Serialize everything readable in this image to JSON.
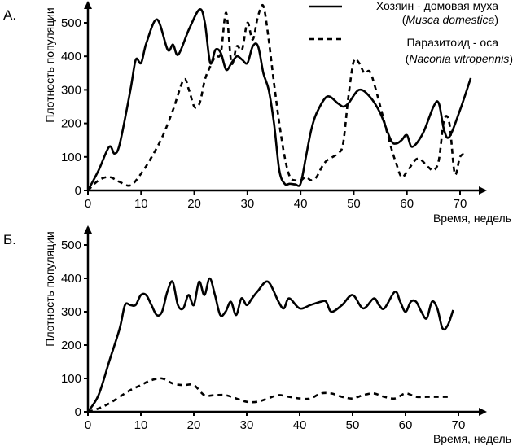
{
  "chart_data": [
    {
      "panel": "А.",
      "type": "line",
      "xlabel": "Время, недель",
      "ylabel": "Плотность популяции",
      "xlim": [
        0,
        75
      ],
      "ylim": [
        0,
        550
      ],
      "xticks": [
        0,
        10,
        20,
        30,
        40,
        50,
        60,
        70
      ],
      "yticks": [
        0,
        100,
        200,
        300,
        400,
        500
      ],
      "grid": false,
      "legend_position": "top-right",
      "series": [
        {
          "name": "host",
          "legend_line1": "Хозяин - домовая муха",
          "legend_paren_open": "(",
          "legend_latin": "Musca domestica",
          "legend_paren_close": ")",
          "style": "solid",
          "x": [
            0,
            2,
            4,
            5,
            6,
            8,
            9,
            10,
            11,
            13,
            15,
            16,
            17,
            19,
            21,
            22,
            23,
            24,
            25,
            26,
            27,
            28,
            29,
            30,
            31,
            32,
            33,
            34,
            35,
            36,
            37,
            38,
            39,
            40,
            41,
            42,
            43,
            45,
            47,
            48,
            49,
            51,
            53,
            55,
            57,
            58,
            59,
            60,
            61,
            63,
            65,
            66,
            67,
            68,
            70,
            72
          ],
          "y": [
            0,
            60,
            130,
            110,
            140,
            300,
            390,
            380,
            440,
            510,
            420,
            435,
            405,
            480,
            540,
            500,
            380,
            420,
            410,
            360,
            380,
            400,
            390,
            380,
            430,
            430,
            350,
            300,
            200,
            60,
            20,
            20,
            18,
            20,
            100,
            180,
            230,
            280,
            260,
            250,
            260,
            300,
            280,
            230,
            150,
            140,
            150,
            165,
            130,
            170,
            250,
            260,
            180,
            160,
            240,
            335
          ]
        },
        {
          "name": "parasitoid",
          "legend_line1": "Паразитоид - оса",
          "legend_paren_open": "(",
          "legend_latin": "Naconia vitropennis",
          "legend_paren_close": ")",
          "style": "dashed",
          "x": [
            0,
            2,
            4,
            6,
            8,
            10,
            12,
            14,
            16,
            18,
            19,
            20,
            21,
            22,
            23,
            24,
            25,
            26,
            27,
            28,
            29,
            30,
            31,
            32,
            33,
            34,
            35,
            36,
            37,
            38,
            39,
            40,
            41,
            42,
            43,
            44,
            45,
            47,
            48,
            49,
            50,
            51,
            52,
            53,
            54,
            55,
            57,
            58,
            59,
            60,
            62,
            64,
            65,
            66,
            67,
            68,
            69,
            70,
            71
          ],
          "y": [
            0,
            30,
            40,
            25,
            15,
            50,
            100,
            160,
            240,
            330,
            300,
            250,
            260,
            330,
            370,
            400,
            410,
            530,
            380,
            430,
            420,
            500,
            450,
            520,
            550,
            450,
            320,
            200,
            100,
            40,
            30,
            30,
            40,
            30,
            40,
            70,
            90,
            110,
            140,
            280,
            385,
            380,
            350,
            355,
            310,
            250,
            130,
            80,
            40,
            55,
            95,
            70,
            60,
            90,
            210,
            200,
            50,
            100,
            110
          ]
        }
      ]
    },
    {
      "panel": "Б.",
      "type": "line",
      "xlabel": "Время, недель",
      "ylabel": "Плотность популяции",
      "xlim": [
        0,
        75
      ],
      "ylim": [
        0,
        550
      ],
      "xticks": [
        0,
        10,
        20,
        30,
        40,
        50,
        60,
        70
      ],
      "yticks": [
        0,
        100,
        200,
        300,
        400,
        500
      ],
      "grid": false,
      "series": [
        {
          "name": "host",
          "style": "solid",
          "x": [
            0,
            2,
            4,
            6,
            7,
            8,
            9,
            10,
            11,
            12,
            13,
            14,
            15,
            16,
            17,
            18,
            19,
            20,
            21,
            22,
            23,
            24,
            25,
            26,
            27,
            28,
            29,
            30,
            31,
            32,
            34,
            36,
            37,
            38,
            40,
            42,
            44,
            45,
            46,
            48,
            50,
            52,
            54,
            55,
            56,
            58,
            59,
            60,
            61,
            62,
            63,
            64,
            65,
            66,
            67,
            68,
            69
          ],
          "y": [
            0,
            50,
            150,
            250,
            320,
            320,
            320,
            350,
            350,
            320,
            290,
            300,
            360,
            390,
            320,
            310,
            350,
            320,
            390,
            350,
            400,
            350,
            290,
            300,
            330,
            290,
            340,
            320,
            340,
            360,
            390,
            330,
            310,
            340,
            310,
            320,
            330,
            330,
            300,
            320,
            350,
            310,
            340,
            320,
            310,
            360,
            330,
            300,
            330,
            330,
            300,
            280,
            330,
            310,
            250,
            260,
            305
          ]
        },
        {
          "name": "parasitoid",
          "style": "dashed",
          "x": [
            0,
            2,
            4,
            6,
            8,
            10,
            12,
            14,
            16,
            18,
            20,
            22,
            24,
            26,
            28,
            30,
            32,
            34,
            36,
            38,
            40,
            42,
            44,
            46,
            48,
            50,
            52,
            54,
            56,
            58,
            60,
            62,
            64,
            66,
            68
          ],
          "y": [
            0,
            10,
            25,
            45,
            65,
            80,
            95,
            100,
            85,
            80,
            80,
            50,
            50,
            50,
            40,
            30,
            30,
            40,
            50,
            45,
            40,
            40,
            55,
            55,
            45,
            40,
            50,
            55,
            45,
            40,
            55,
            45,
            45,
            45,
            45
          ]
        }
      ]
    }
  ]
}
